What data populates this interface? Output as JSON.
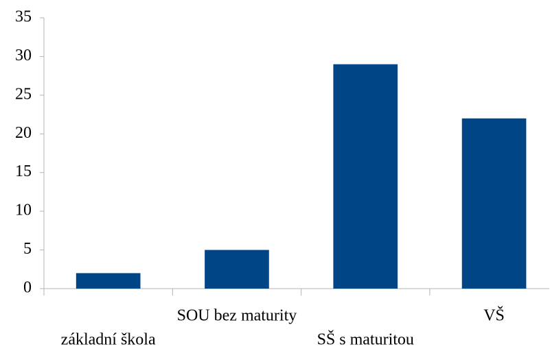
{
  "chart_data": {
    "type": "bar",
    "categories": [
      "základní škola",
      "SOU bez maturity",
      "SŠ s maturitou",
      "VŠ"
    ],
    "values": [
      2,
      5,
      29,
      22
    ],
    "color": "#004586",
    "ylim": [
      0,
      35
    ],
    "yticks": [
      0,
      5,
      10,
      15,
      20,
      25,
      30,
      35
    ],
    "grid": false
  }
}
